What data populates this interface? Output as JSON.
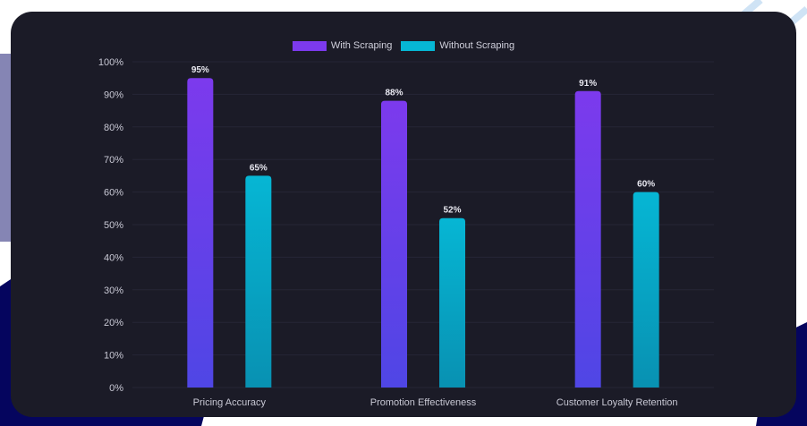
{
  "chart_data": {
    "type": "bar",
    "categories": [
      "Pricing Accuracy",
      "Promotion Effectiveness",
      "Customer Loyalty Retention"
    ],
    "series": [
      {
        "name": "With Scraping",
        "values": [
          95,
          88,
          91
        ],
        "color": "#7c3aed",
        "color_bottom": "#4f46e5"
      },
      {
        "name": "Without Scraping",
        "values": [
          65,
          52,
          60
        ],
        "color": "#06b6d4",
        "color_bottom": "#0891b2"
      }
    ],
    "data_labels": [
      [
        "95%",
        "88%",
        "91%"
      ],
      [
        "65%",
        "52%",
        "60%"
      ]
    ],
    "ylim": [
      0,
      100
    ],
    "yticks": [
      "0%",
      "10%",
      "20%",
      "30%",
      "40%",
      "50%",
      "60%",
      "70%",
      "80%",
      "90%",
      "100%"
    ],
    "grid": true,
    "legend": "top-center"
  }
}
